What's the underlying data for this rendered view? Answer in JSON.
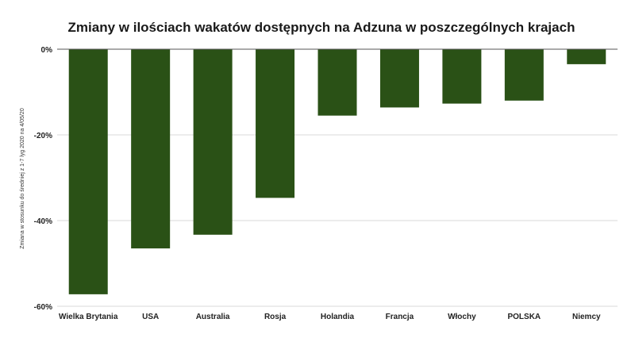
{
  "chart_data": {
    "type": "bar",
    "title": "Zmiany w ilościach wakatów dostępnych na Adzuna w poszczególnych krajach",
    "xlabel": "",
    "ylabel": "Zmiana w stosunku do średniej z 1-7 lyg 2020 na 4/05/20",
    "categories": [
      "Wielka Brytania",
      "USA",
      "Australia",
      "Rosja",
      "Holandia",
      "Francja",
      "Włochy",
      "POLSKA",
      "Niemcy"
    ],
    "values": [
      -57.2,
      -46.5,
      -43.3,
      -34.7,
      -15.5,
      -13.6,
      -12.7,
      -12.0,
      -3.5
    ],
    "ylim": [
      -60,
      0
    ],
    "yticks": [
      0,
      -20,
      -40,
      -60
    ],
    "ytick_labels": [
      "0%",
      "-20%",
      "-40%",
      "-60%"
    ],
    "bar_color": "#2a5116",
    "grid": true,
    "legend": "none"
  }
}
